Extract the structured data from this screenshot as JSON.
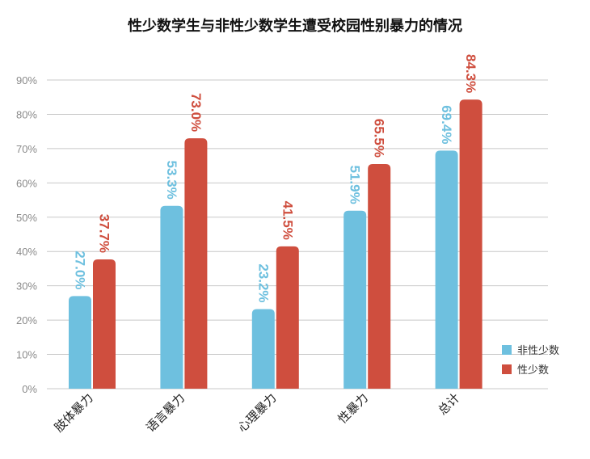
{
  "chart_data": {
    "type": "bar",
    "title": "性少数学生与非性少数学生遭受校园性别暴力的情况",
    "categories": [
      "肢体暴力",
      "语言暴力",
      "心理暴力",
      "性暴力",
      "总计"
    ],
    "series": [
      {
        "name": "非性少数",
        "values": [
          27.0,
          53.3,
          23.2,
          51.9,
          69.4
        ],
        "color": "#6ec0df"
      },
      {
        "name": "性少数",
        "values": [
          37.7,
          73.0,
          41.5,
          65.5,
          84.3
        ],
        "color": "#cf4e3e"
      }
    ],
    "data_labels": [
      [
        "27.0%",
        "53.3%",
        "23.2%",
        "51.9%",
        "69.4%"
      ],
      [
        "37.7%",
        "73.0%",
        "41.5%",
        "65.5%",
        "84.3%"
      ]
    ],
    "ylim": [
      0,
      90
    ],
    "yticks": [
      0,
      10,
      20,
      30,
      40,
      50,
      60,
      70,
      80,
      90
    ],
    "ytick_labels": [
      "0%",
      "10%",
      "20%",
      "30%",
      "40%",
      "50%",
      "60%",
      "70%",
      "80%",
      "90%"
    ],
    "xlabel": "",
    "ylabel": "",
    "grid": true,
    "legend_position": "right"
  }
}
